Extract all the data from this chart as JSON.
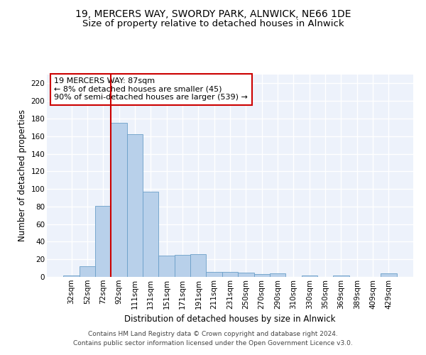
{
  "title": "19, MERCERS WAY, SWORDY PARK, ALNWICK, NE66 1DE",
  "subtitle": "Size of property relative to detached houses in Alnwick",
  "xlabel": "Distribution of detached houses by size in Alnwick",
  "ylabel": "Number of detached properties",
  "categories": [
    "32sqm",
    "52sqm",
    "72sqm",
    "92sqm",
    "111sqm",
    "131sqm",
    "151sqm",
    "171sqm",
    "191sqm",
    "211sqm",
    "231sqm",
    "250sqm",
    "270sqm",
    "290sqm",
    "310sqm",
    "330sqm",
    "350sqm",
    "369sqm",
    "389sqm",
    "409sqm",
    "429sqm"
  ],
  "bar_heights": [
    2,
    12,
    81,
    175,
    162,
    97,
    24,
    25,
    26,
    6,
    6,
    5,
    3,
    4,
    0,
    2,
    0,
    2,
    0,
    0,
    4
  ],
  "bar_color": "#b8d0ea",
  "bar_edge_color": "#6a9fc8",
  "vline_x_index": 2,
  "vline_color": "#cc0000",
  "annotation_line1": "19 MERCERS WAY: 87sqm",
  "annotation_line2": "← 8% of detached houses are smaller (45)",
  "annotation_line3": "90% of semi-detached houses are larger (539) →",
  "annotation_box_color": "#ffffff",
  "annotation_box_edge_color": "#cc0000",
  "ylim": [
    0,
    230
  ],
  "yticks": [
    0,
    20,
    40,
    60,
    80,
    100,
    120,
    140,
    160,
    180,
    200,
    220
  ],
  "background_color": "#edf2fb",
  "grid_color": "#ffffff",
  "footer": "Contains HM Land Registry data © Crown copyright and database right 2024.\nContains public sector information licensed under the Open Government Licence v3.0.",
  "title_fontsize": 10,
  "subtitle_fontsize": 9.5,
  "axis_label_fontsize": 8.5,
  "tick_fontsize": 7.5,
  "annotation_fontsize": 8,
  "footer_fontsize": 6.5
}
